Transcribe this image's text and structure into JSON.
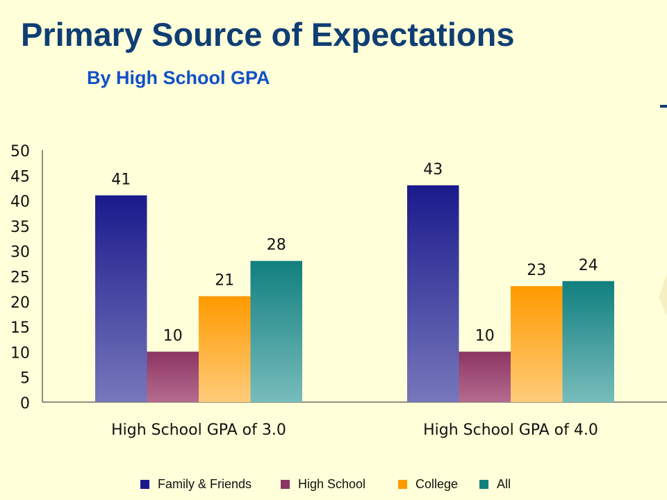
{
  "page": {
    "title": "Primary Source of Expectations",
    "subtitle": "By High School GPA"
  },
  "chart_data": {
    "type": "bar",
    "title": "Primary Source of Expectations",
    "subtitle": "By High School GPA",
    "categories": [
      "High School GPA of 3.0",
      "High School GPA of 4.0"
    ],
    "series": [
      {
        "name": "Family & Friends",
        "values": [
          41,
          43
        ],
        "color": "#1A1A8C",
        "color_light": "#7777BB"
      },
      {
        "name": "High School",
        "values": [
          10,
          10
        ],
        "color": "#8C3563",
        "color_light": "#B56B8F"
      },
      {
        "name": "College",
        "values": [
          21,
          23
        ],
        "color": "#FF9A00",
        "color_light": "#FFCC7A"
      },
      {
        "name": "All",
        "values": [
          28,
          24
        ],
        "color": "#117F7F",
        "color_light": "#78BCBC"
      }
    ],
    "y_ticks": [
      "0",
      "5",
      "10",
      "15",
      "20",
      "25",
      "30",
      "35",
      "40",
      "45",
      "50"
    ],
    "ylim": [
      0,
      50
    ],
    "xlabel": "",
    "ylabel": "",
    "grid": false,
    "legend_position": "bottom"
  }
}
